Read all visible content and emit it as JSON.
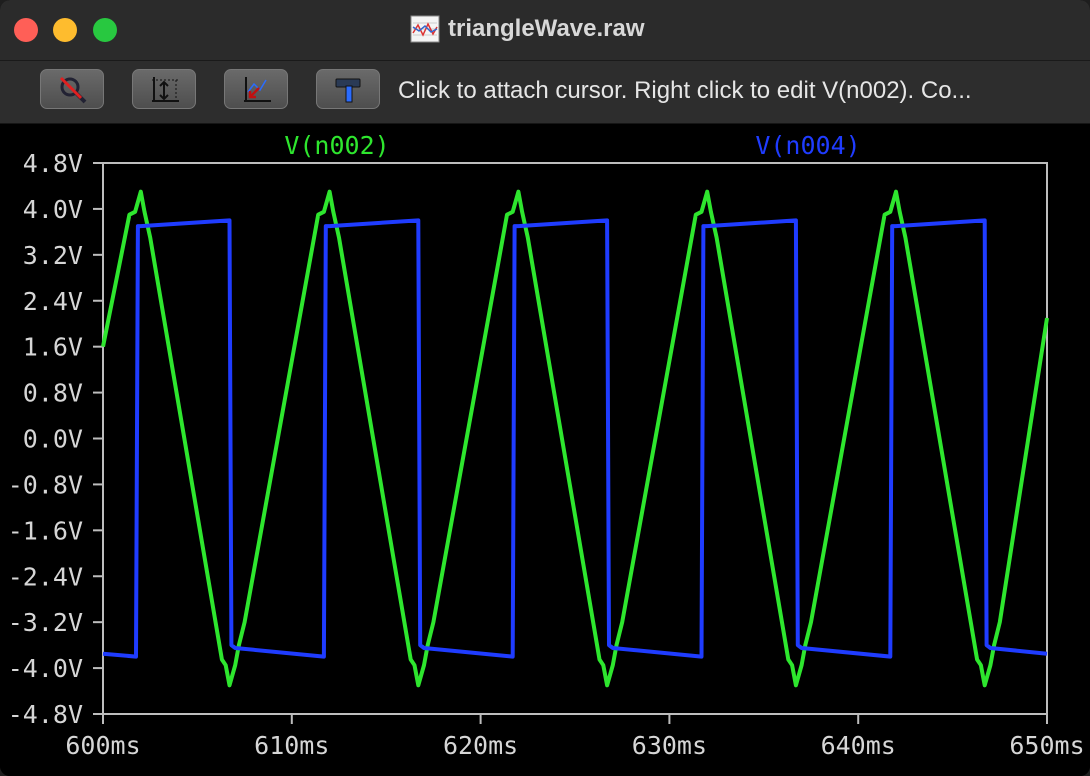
{
  "window": {
    "title": "triangleWave.raw"
  },
  "toolbar": {
    "status_text": "Click to attach cursor. Right click to edit V(n002).  Co...",
    "buttons": [
      {
        "icon": "cursor-off-icon"
      },
      {
        "icon": "autorange-icon"
      },
      {
        "icon": "zoom-extents-icon"
      },
      {
        "icon": "hammer-icon"
      }
    ]
  },
  "chart_data": {
    "type": "line",
    "title": "",
    "xlabel": "",
    "ylabel": "",
    "xlim": [
      600,
      650
    ],
    "ylim": [
      -4.8,
      4.8
    ],
    "x_ticks": [
      "600ms",
      "610ms",
      "620ms",
      "630ms",
      "640ms",
      "650ms"
    ],
    "y_ticks": [
      "4.8V",
      "4.0V",
      "3.2V",
      "2.4V",
      "1.6V",
      "0.8V",
      "0.0V",
      "-0.8V",
      "-1.6V",
      "-2.4V",
      "-3.2V",
      "-4.0V",
      "-4.8V"
    ],
    "series": [
      {
        "name": "V(n002)",
        "color": "#2ee62e",
        "x": [
          600,
          601.4,
          601.7,
          602.0,
          602.2,
          602.5,
          606.3,
          606.5,
          606.7,
          607.0,
          607.2,
          607.5,
          611.4,
          611.7,
          612.0,
          612.2,
          612.5,
          616.3,
          616.5,
          616.7,
          617.0,
          617.2,
          617.5,
          621.4,
          621.7,
          622.0,
          622.2,
          622.5,
          626.3,
          626.5,
          626.7,
          627.0,
          627.2,
          627.5,
          631.4,
          631.7,
          632.0,
          632.2,
          632.5,
          636.3,
          636.5,
          636.7,
          637.0,
          637.2,
          637.5,
          641.4,
          641.7,
          642.0,
          642.2,
          642.5,
          646.3,
          646.5,
          646.7,
          647.0,
          647.2,
          647.5,
          650
        ],
        "values": [
          1.6,
          3.9,
          3.95,
          4.3,
          3.95,
          3.5,
          -3.85,
          -3.95,
          -4.3,
          -3.95,
          -3.6,
          -3.2,
          3.9,
          3.95,
          4.3,
          3.95,
          3.5,
          -3.85,
          -3.95,
          -4.3,
          -3.95,
          -3.6,
          -3.2,
          3.9,
          3.95,
          4.3,
          3.95,
          3.5,
          -3.85,
          -3.95,
          -4.3,
          -3.95,
          -3.6,
          -3.2,
          3.9,
          3.95,
          4.3,
          3.95,
          3.5,
          -3.85,
          -3.95,
          -4.3,
          -3.95,
          -3.6,
          -3.2,
          3.9,
          3.95,
          4.3,
          3.95,
          3.5,
          -3.85,
          -3.95,
          -4.3,
          -3.95,
          -3.6,
          -3.2,
          2.1
        ]
      },
      {
        "name": "V(n004)",
        "color": "#1f3cff",
        "x": [
          600,
          601.75,
          601.85,
          602.0,
          606.7,
          606.8,
          607.0,
          611.7,
          611.8,
          612.0,
          616.7,
          616.8,
          617.0,
          621.7,
          621.8,
          622.0,
          626.7,
          626.8,
          627.0,
          631.7,
          631.8,
          632.0,
          636.7,
          636.8,
          637.0,
          641.7,
          641.8,
          642.0,
          646.7,
          646.8,
          647.0,
          650
        ],
        "values": [
          -3.75,
          -3.8,
          3.7,
          3.7,
          3.8,
          -3.6,
          -3.65,
          -3.8,
          3.7,
          3.7,
          3.8,
          -3.6,
          -3.65,
          -3.8,
          3.7,
          3.7,
          3.8,
          -3.6,
          -3.65,
          -3.8,
          3.7,
          3.7,
          3.8,
          -3.6,
          -3.65,
          -3.8,
          3.7,
          3.7,
          3.8,
          -3.6,
          -3.65,
          -3.75
        ]
      }
    ]
  }
}
